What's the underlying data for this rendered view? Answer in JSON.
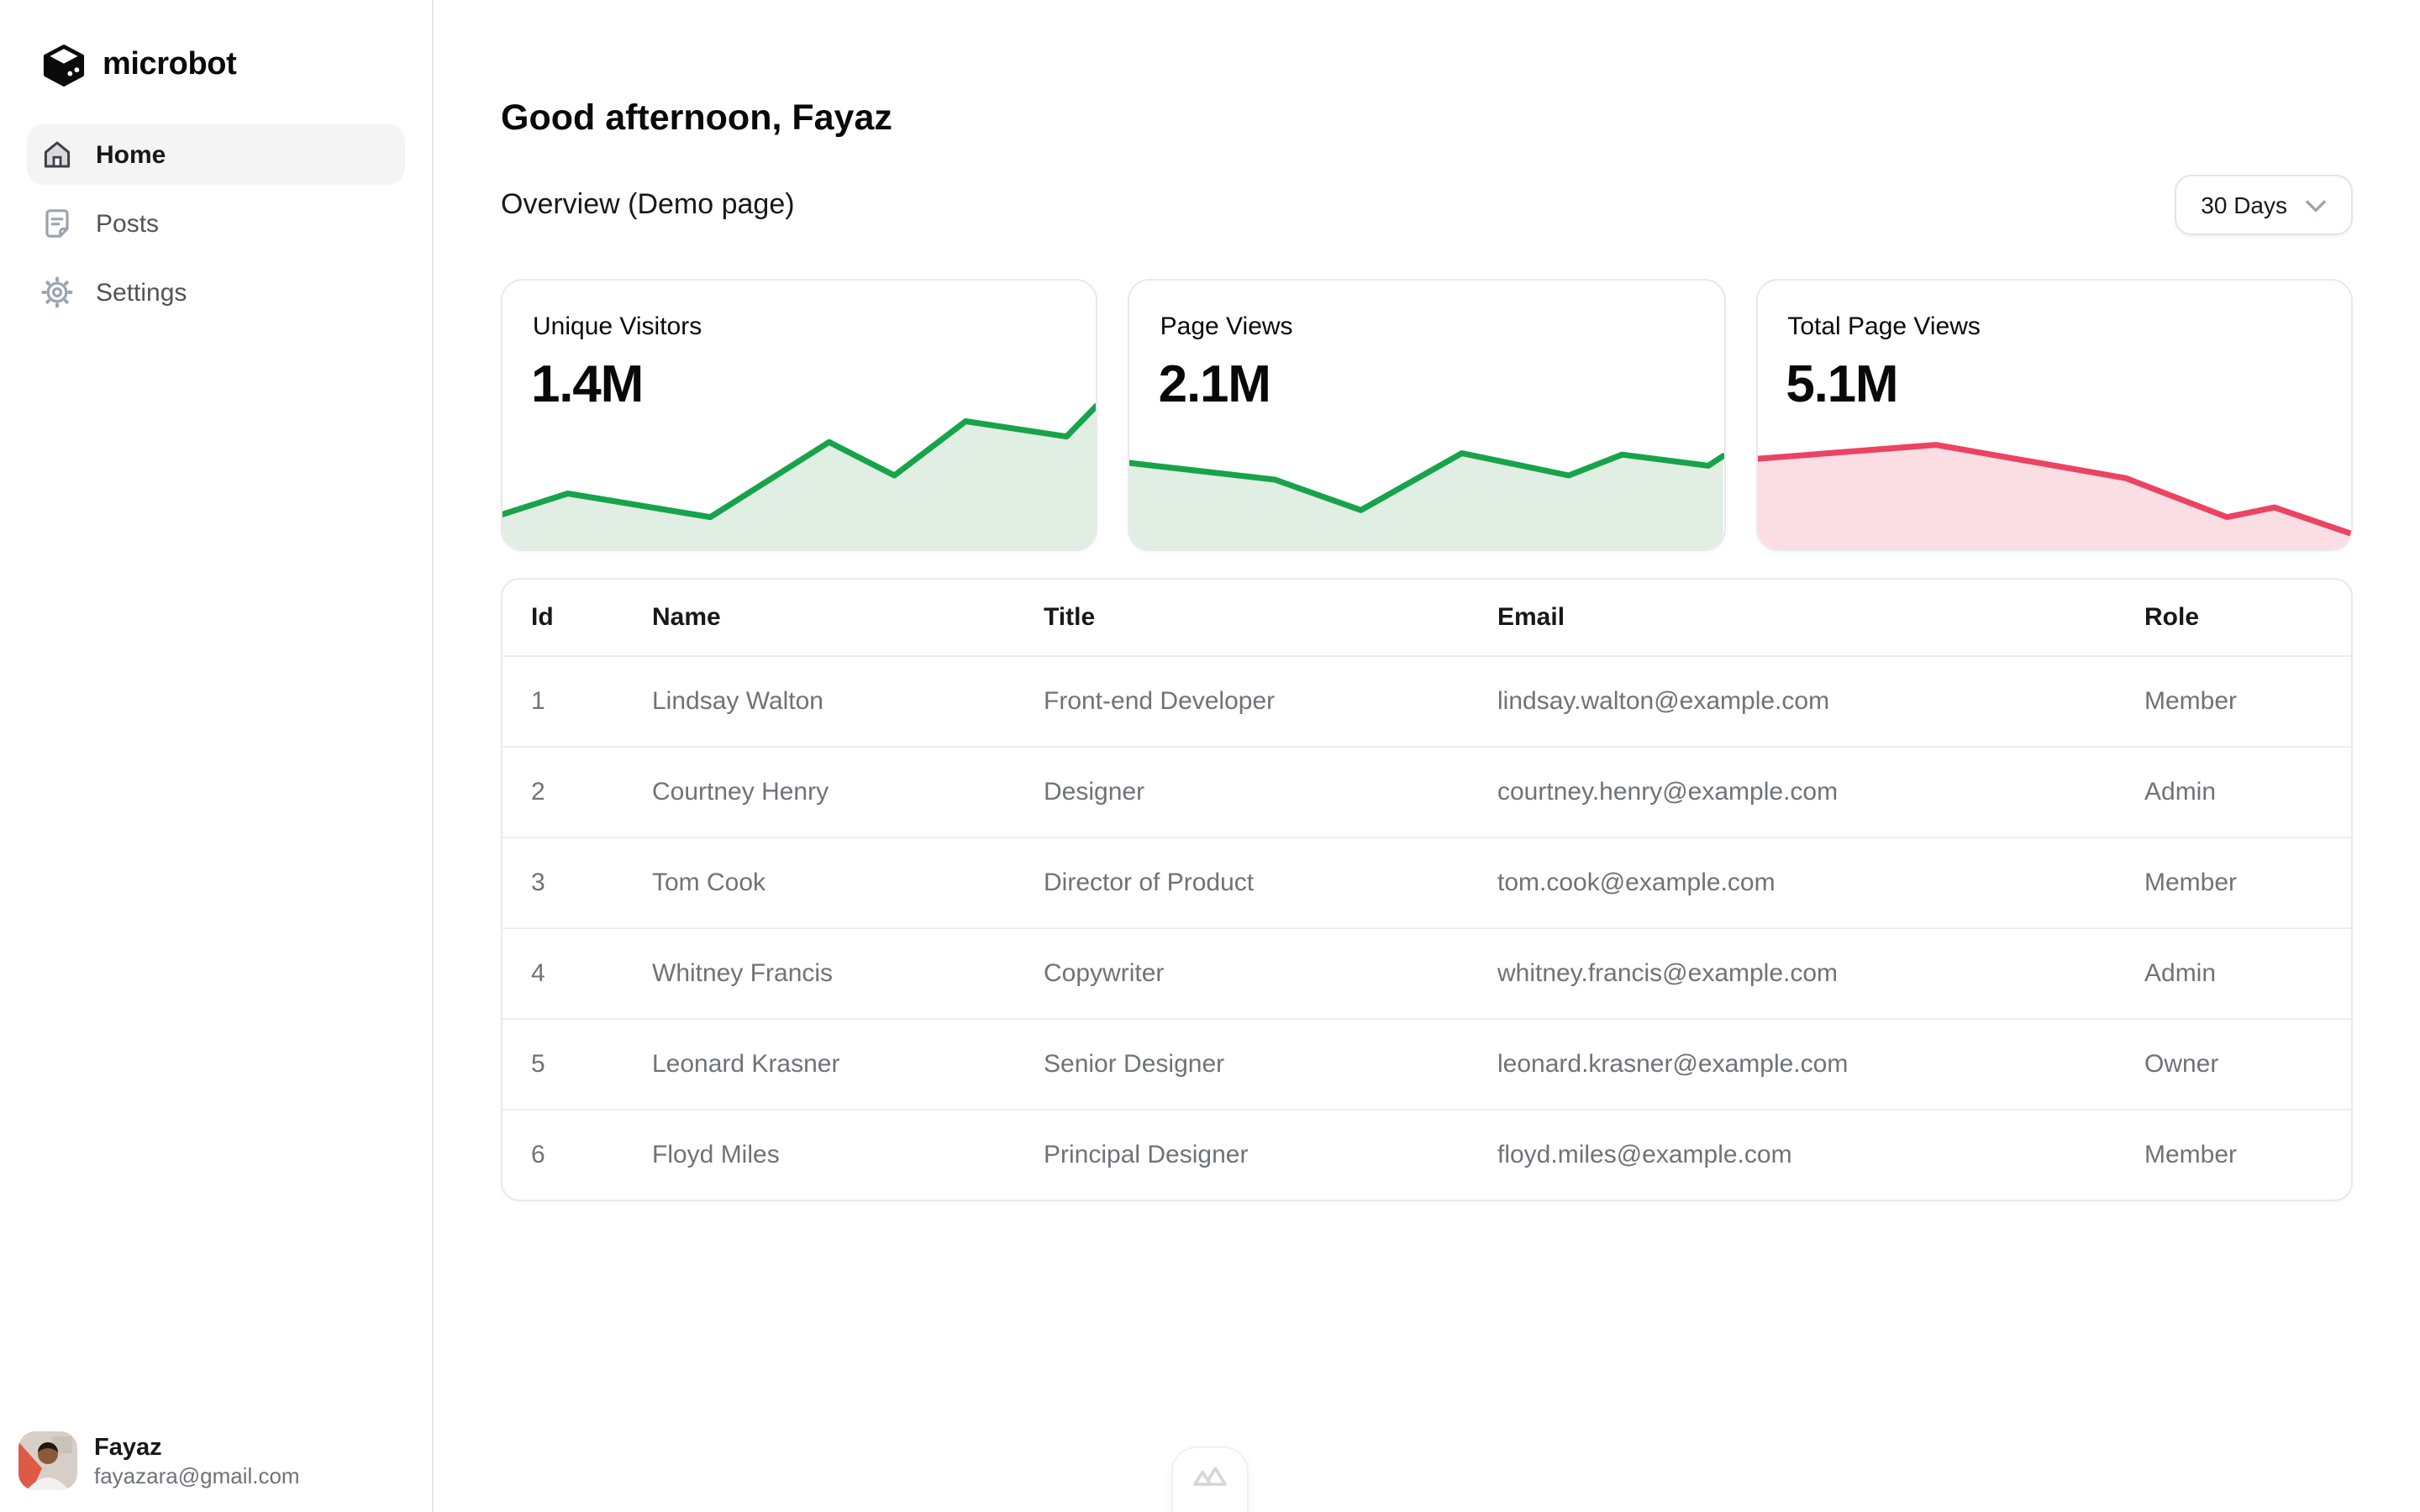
{
  "sidebar": {
    "logo": "microbot",
    "nav": [
      {
        "label": "Home",
        "icon": "home-icon",
        "active": true
      },
      {
        "label": "Posts",
        "icon": "note-icon",
        "active": false
      },
      {
        "label": "Settings",
        "icon": "gear-icon",
        "active": false
      }
    ],
    "user": {
      "name": "Fayaz",
      "email": "fayazara@gmail.com"
    }
  },
  "header": {
    "greeting": "Good afternoon, Fayaz",
    "section_title": "Overview (Demo page)",
    "range_label": "30 Days",
    "range_icon": "chevron-down-icon"
  },
  "chart_data": [
    {
      "type": "area",
      "title": "Unique Visitors",
      "value": "1.4M",
      "trend": "up",
      "line_color": "#17a34a",
      "fill_color": "#e1eee3",
      "x": [
        0,
        0.11,
        0.35,
        0.55,
        0.66,
        0.78,
        0.95,
        1.0
      ],
      "values": [
        0.22,
        0.37,
        0.2,
        0.74,
        0.5,
        0.89,
        0.78,
        1.0
      ]
    },
    {
      "type": "area",
      "title": "Page Views",
      "value": "2.1M",
      "trend": "up",
      "line_color": "#17a34a",
      "fill_color": "#e1eee3",
      "x": [
        0,
        0.245,
        0.39,
        0.56,
        0.74,
        0.83,
        0.975,
        1.0
      ],
      "values": [
        0.59,
        0.47,
        0.25,
        0.66,
        0.5,
        0.65,
        0.57,
        0.64
      ]
    },
    {
      "type": "area",
      "title": "Total Page Views",
      "value": "5.1M",
      "trend": "down",
      "line_color": "#ec4363",
      "fill_color": "#fbdee3",
      "x": [
        0,
        0.3,
        0.62,
        0.79,
        0.87,
        1.0
      ],
      "values": [
        0.62,
        0.72,
        0.48,
        0.2,
        0.27,
        0.08
      ]
    }
  ],
  "table": {
    "columns": [
      "Id",
      "Name",
      "Title",
      "Email",
      "Role"
    ],
    "rows": [
      [
        "1",
        "Lindsay Walton",
        "Front-end Developer",
        "lindsay.walton@example.com",
        "Member"
      ],
      [
        "2",
        "Courtney Henry",
        "Designer",
        "courtney.henry@example.com",
        "Admin"
      ],
      [
        "3",
        "Tom Cook",
        "Director of Product",
        "tom.cook@example.com",
        "Member"
      ],
      [
        "4",
        "Whitney Francis",
        "Copywriter",
        "whitney.francis@example.com",
        "Admin"
      ],
      [
        "5",
        "Leonard Krasner",
        "Senior Designer",
        "leonard.krasner@example.com",
        "Owner"
      ],
      [
        "6",
        "Floyd Miles",
        "Principal Designer",
        "floyd.miles@example.com",
        "Member"
      ]
    ]
  },
  "footer": {
    "badge_icon": "mountain-icon"
  },
  "colors": {
    "accent_green": "#17a34a",
    "green_fill": "#e1eee3",
    "accent_red": "#ec4363",
    "red_fill": "#fbdee3",
    "border": "#e8e8ea",
    "muted_text": "#71717a",
    "active_nav_bg": "#f4f4f5"
  }
}
